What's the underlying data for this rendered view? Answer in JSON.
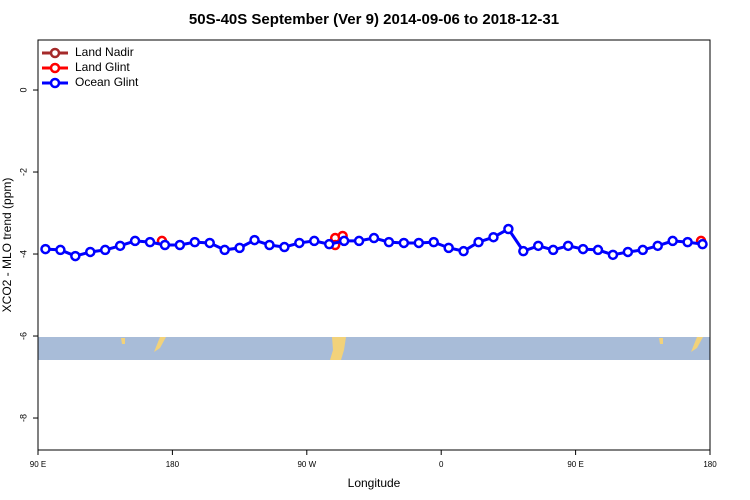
{
  "chart_data": {
    "type": "line",
    "title": "50S-40S September (Ver 9)   2014-09-06 to 2018-12-31",
    "x_label": "Longitude",
    "y_label": "XCO2 - MLO trend (ppm)",
    "xlim": [
      90,
      540
    ],
    "ylim": [
      -8.78,
      1.22
    ],
    "xticks": [
      {
        "value": 90,
        "label": "90 E"
      },
      {
        "value": 180,
        "label": "180"
      },
      {
        "value": 270,
        "label": "90 W"
      },
      {
        "value": 360,
        "label": "0"
      },
      {
        "value": 450,
        "label": "90 E"
      },
      {
        "value": 540,
        "label": "180"
      }
    ],
    "yticks": [
      0,
      -2,
      -4,
      -6,
      -8
    ],
    "legend": "top-left",
    "series": [
      {
        "name": "Land Nadir",
        "color": "#a52a2a",
        "x": [],
        "values": []
      },
      {
        "name": "Land Glint",
        "color": "#ff0000",
        "x": [
          173,
          289,
          289,
          294,
          534
        ],
        "values": [
          -3.68,
          -3.61,
          -3.78,
          -3.56,
          -3.68
        ]
      },
      {
        "name": "Ocean Glint",
        "color": "#0000ff",
        "x": [
          95,
          105,
          115,
          125,
          135,
          145,
          155,
          165,
          175,
          185,
          195,
          205,
          215,
          225,
          235,
          245,
          255,
          265,
          275,
          285,
          295,
          305,
          315,
          325,
          335,
          345,
          355,
          365,
          375,
          385,
          395,
          405,
          415,
          425,
          435,
          445,
          455,
          465,
          475,
          485,
          495,
          505,
          515,
          525,
          535
        ],
        "values": [
          -3.88,
          -3.9,
          -4.05,
          -3.95,
          -3.9,
          -3.8,
          -3.68,
          -3.71,
          -3.78,
          -3.78,
          -3.71,
          -3.73,
          -3.9,
          -3.85,
          -3.66,
          -3.78,
          -3.83,
          -3.73,
          -3.68,
          -3.76,
          -3.68,
          -3.68,
          -3.61,
          -3.71,
          -3.73,
          -3.73,
          -3.71,
          -3.85,
          -3.93,
          -3.71,
          -3.59,
          -3.39,
          -3.93,
          -3.8,
          -3.9,
          -3.8,
          -3.88,
          -3.9,
          -4.02,
          -3.95,
          -3.9,
          -3.8,
          -3.68,
          -3.71,
          -3.76
        ]
      }
    ]
  }
}
